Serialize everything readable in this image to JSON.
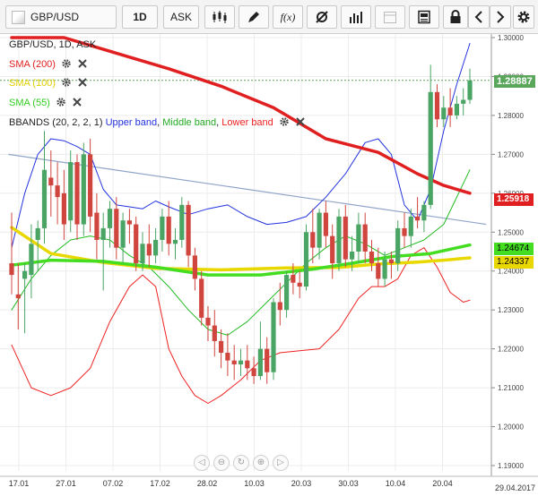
{
  "toolbar": {
    "symbol": "GBP/USD",
    "timeframe": "1D",
    "side": "ASK",
    "icons": [
      "symbol-dropdown-icon",
      "candlestick-type-icon",
      "pencil-draw-icon",
      "function-fx-icon",
      "settings-cog-icon",
      "volume-bars-icon",
      "calendar-icon",
      "save-print-icon",
      "lock-icon",
      "chevron-left-icon",
      "chevron-right-icon",
      "gear-icon"
    ]
  },
  "legend": {
    "title": "GBP/USD, 1D, ASK",
    "sma200": "SMA (200)",
    "sma100": "SMA (100)",
    "sma55": "SMA (55)",
    "bbands_prefix": "BBANDS (20, 2, 2, 1)",
    "upper": "Upper band",
    "middle": "Middle band",
    "lower": "Lower band",
    "sep": ", "
  },
  "colors": {
    "sma200": "#e02020",
    "sma100": "#e8d800",
    "sma55": "#44dd22",
    "upper": "#2233dd",
    "middle": "#22bb22",
    "lower": "#ee2222",
    "up_candle": "#4aa564",
    "down_candle": "#d0463f",
    "trendline": "#8fa4c8",
    "price_tag": "#5aa75c"
  },
  "tags": {
    "price": "1.28887",
    "sma200": "1.25918",
    "sma55": "1.24674",
    "sma100": "1.24337"
  },
  "date_corner": "29.04.2017",
  "nav_icons": [
    "scroll-left-icon",
    "zoom-out-icon",
    "reset-zoom-icon",
    "zoom-in-icon",
    "scroll-right-icon"
  ],
  "chart_data": {
    "type": "candlestick",
    "ylim": [
      1.19,
      1.3
    ],
    "ylabels": [
      "1.30000",
      "1.29000",
      "1.28000",
      "1.27000",
      "1.26000",
      "1.25000",
      "1.24000",
      "1.23000",
      "1.22000",
      "1.21000",
      "1.20000",
      "1.19000"
    ],
    "xlabels": [
      "17.01",
      "27.01",
      "07.02",
      "17.02",
      "28.02",
      "10.03",
      "20.03",
      "30.03",
      "10.04",
      "20.04"
    ],
    "candles": [
      [
        1.242,
        1.255,
        1.239,
        1.234
      ],
      [
        1.234,
        1.242,
        1.233,
        1.225
      ],
      [
        1.238,
        1.242,
        1.24,
        1.224
      ],
      [
        1.239,
        1.252,
        1.247,
        1.233
      ],
      [
        1.248,
        1.253,
        1.251,
        1.24
      ],
      [
        1.251,
        1.276,
        1.266,
        1.247
      ],
      [
        1.264,
        1.271,
        1.262,
        1.254
      ],
      [
        1.262,
        1.268,
        1.259,
        1.252
      ],
      [
        1.26,
        1.266,
        1.252,
        1.248
      ],
      [
        1.253,
        1.271,
        1.268,
        1.25
      ],
      [
        1.268,
        1.27,
        1.252,
        1.248
      ],
      [
        1.252,
        1.273,
        1.27,
        1.249
      ],
      [
        1.27,
        1.274,
        1.254,
        1.25
      ],
      [
        1.255,
        1.26,
        1.248,
        1.243
      ],
      [
        1.248,
        1.255,
        1.251,
        1.235
      ],
      [
        1.251,
        1.258,
        1.256,
        1.246
      ],
      [
        1.256,
        1.259,
        1.246,
        1.243
      ],
      [
        1.246,
        1.255,
        1.253,
        1.242
      ],
      [
        1.253,
        1.256,
        1.252,
        1.247
      ],
      [
        1.252,
        1.254,
        1.242,
        1.24
      ],
      [
        1.242,
        1.25,
        1.247,
        1.24
      ],
      [
        1.247,
        1.252,
        1.244,
        1.241
      ],
      [
        1.244,
        1.251,
        1.248,
        1.242
      ],
      [
        1.248,
        1.256,
        1.254,
        1.245
      ],
      [
        1.254,
        1.258,
        1.247,
        1.244
      ],
      [
        1.247,
        1.251,
        1.248,
        1.243
      ],
      [
        1.248,
        1.259,
        1.257,
        1.246
      ],
      [
        1.257,
        1.258,
        1.244,
        1.241
      ],
      [
        1.244,
        1.246,
        1.238,
        1.235
      ],
      [
        1.238,
        1.24,
        1.228,
        1.226
      ],
      [
        1.228,
        1.231,
        1.226,
        1.222
      ],
      [
        1.226,
        1.23,
        1.222,
        1.218
      ],
      [
        1.222,
        1.225,
        1.219,
        1.215
      ],
      [
        1.219,
        1.224,
        1.217,
        1.213
      ],
      [
        1.217,
        1.221,
        1.216,
        1.212
      ],
      [
        1.216,
        1.22,
        1.217,
        1.213
      ],
      [
        1.217,
        1.221,
        1.215,
        1.212
      ],
      [
        1.215,
        1.218,
        1.213,
        1.211
      ],
      [
        1.213,
        1.227,
        1.22,
        1.212
      ],
      [
        1.22,
        1.223,
        1.214,
        1.211
      ],
      [
        1.214,
        1.233,
        1.232,
        1.212
      ],
      [
        1.232,
        1.237,
        1.23,
        1.226
      ],
      [
        1.23,
        1.24,
        1.239,
        1.228
      ],
      [
        1.239,
        1.242,
        1.237,
        1.234
      ],
      [
        1.237,
        1.24,
        1.236,
        1.233
      ],
      [
        1.236,
        1.252,
        1.25,
        1.235
      ],
      [
        1.25,
        1.256,
        1.246,
        1.242
      ],
      [
        1.246,
        1.256,
        1.255,
        1.243
      ],
      [
        1.255,
        1.258,
        1.249,
        1.246
      ],
      [
        1.249,
        1.252,
        1.242,
        1.238
      ],
      [
        1.242,
        1.256,
        1.254,
        1.24
      ],
      [
        1.254,
        1.257,
        1.243,
        1.241
      ],
      [
        1.243,
        1.249,
        1.245,
        1.24
      ],
      [
        1.245,
        1.255,
        1.252,
        1.242
      ],
      [
        1.252,
        1.255,
        1.245,
        1.242
      ],
      [
        1.245,
        1.248,
        1.242,
        1.24
      ],
      [
        1.242,
        1.246,
        1.238,
        1.236
      ],
      [
        1.238,
        1.245,
        1.243,
        1.236
      ],
      [
        1.243,
        1.245,
        1.242,
        1.238
      ],
      [
        1.242,
        1.253,
        1.251,
        1.24
      ],
      [
        1.251,
        1.255,
        1.249,
        1.246
      ],
      [
        1.249,
        1.256,
        1.254,
        1.246
      ],
      [
        1.254,
        1.259,
        1.253,
        1.251
      ],
      [
        1.253,
        1.258,
        1.257,
        1.25
      ],
      [
        1.257,
        1.293,
        1.286,
        1.256
      ],
      [
        1.286,
        1.288,
        1.279,
        1.277
      ],
      [
        1.279,
        1.285,
        1.282,
        1.277
      ],
      [
        1.282,
        1.287,
        1.28,
        1.277
      ],
      [
        1.28,
        1.285,
        1.283,
        1.279
      ],
      [
        1.283,
        1.287,
        1.284,
        1.28
      ],
      [
        1.284,
        1.292,
        1.289,
        1.283
      ]
    ],
    "sma200": [
      [
        0,
        1.3
      ],
      [
        8,
        1.3
      ],
      [
        16,
        1.296
      ],
      [
        24,
        1.292
      ],
      [
        32,
        1.2875
      ],
      [
        40,
        1.282
      ],
      [
        48,
        1.274
      ],
      [
        56,
        1.2705
      ],
      [
        62,
        1.265
      ],
      [
        66,
        1.262
      ],
      [
        70,
        1.26
      ]
    ],
    "sma100": [
      [
        0,
        1.2512
      ],
      [
        6,
        1.2445
      ],
      [
        14,
        1.2422
      ],
      [
        22,
        1.2407
      ],
      [
        32,
        1.2403
      ],
      [
        42,
        1.2408
      ],
      [
        50,
        1.2409
      ],
      [
        56,
        1.2418
      ],
      [
        62,
        1.2423
      ],
      [
        66,
        1.2428
      ],
      [
        70,
        1.2434
      ]
    ],
    "sma55": [
      [
        0,
        1.2415
      ],
      [
        6,
        1.2428
      ],
      [
        14,
        1.2425
      ],
      [
        22,
        1.241
      ],
      [
        30,
        1.239
      ],
      [
        38,
        1.239
      ],
      [
        46,
        1.2405
      ],
      [
        52,
        1.242
      ],
      [
        58,
        1.2437
      ],
      [
        64,
        1.2445
      ],
      [
        70,
        1.2467
      ]
    ],
    "bb_upper": [
      [
        0,
        1.246
      ],
      [
        2,
        1.26
      ],
      [
        4,
        1.27
      ],
      [
        6,
        1.274
      ],
      [
        8,
        1.2735
      ],
      [
        10,
        1.272
      ],
      [
        12,
        1.27
      ],
      [
        14,
        1.261
      ],
      [
        16,
        1.257
      ],
      [
        18,
        1.2565
      ],
      [
        20,
        1.256
      ],
      [
        22,
        1.258
      ],
      [
        24,
        1.2565
      ],
      [
        27,
        1.2545
      ],
      [
        30,
        1.256
      ],
      [
        33,
        1.257
      ],
      [
        36,
        1.254
      ],
      [
        39,
        1.252
      ],
      [
        42,
        1.2525
      ],
      [
        45,
        1.254
      ],
      [
        48,
        1.259
      ],
      [
        51,
        1.265
      ],
      [
        54,
        1.273
      ],
      [
        56,
        1.274
      ],
      [
        58,
        1.27
      ],
      [
        60,
        1.257
      ],
      [
        62,
        1.253
      ],
      [
        64,
        1.261
      ],
      [
        66,
        1.276
      ],
      [
        68,
        1.288
      ],
      [
        70,
        1.2985
      ]
    ],
    "bb_middle": [
      [
        0,
        1.23
      ],
      [
        3,
        1.238
      ],
      [
        6,
        1.244
      ],
      [
        9,
        1.248
      ],
      [
        12,
        1.249
      ],
      [
        15,
        1.248
      ],
      [
        18,
        1.244
      ],
      [
        21,
        1.241
      ],
      [
        24,
        1.236
      ],
      [
        27,
        1.23
      ],
      [
        30,
        1.225
      ],
      [
        33,
        1.2235
      ],
      [
        36,
        1.227
      ],
      [
        39,
        1.232
      ],
      [
        42,
        1.237
      ],
      [
        45,
        1.242
      ],
      [
        48,
        1.246
      ],
      [
        51,
        1.249
      ],
      [
        54,
        1.247
      ],
      [
        57,
        1.244
      ],
      [
        60,
        1.246
      ],
      [
        63,
        1.248
      ],
      [
        66,
        1.252
      ],
      [
        68,
        1.259
      ],
      [
        70,
        1.266
      ]
    ],
    "bb_lower": [
      [
        0,
        1.221
      ],
      [
        3,
        1.21
      ],
      [
        6,
        1.208
      ],
      [
        9,
        1.21
      ],
      [
        12,
        1.215
      ],
      [
        15,
        1.227
      ],
      [
        18,
        1.236
      ],
      [
        20,
        1.239
      ],
      [
        22,
        1.236
      ],
      [
        24,
        1.22
      ],
      [
        26,
        1.213
      ],
      [
        28,
        1.208
      ],
      [
        30,
        1.206
      ],
      [
        32,
        1.208
      ],
      [
        35,
        1.212
      ],
      [
        38,
        1.217
      ],
      [
        41,
        1.219
      ],
      [
        44,
        1.2195
      ],
      [
        47,
        1.22
      ],
      [
        50,
        1.225
      ],
      [
        53,
        1.233
      ],
      [
        55,
        1.236
      ],
      [
        57,
        1.236
      ],
      [
        59,
        1.238
      ],
      [
        61,
        1.244
      ],
      [
        63,
        1.246
      ],
      [
        65,
        1.241
      ],
      [
        67,
        1.2345
      ],
      [
        69,
        1.232
      ],
      [
        70,
        1.2325
      ]
    ],
    "trendline": [
      [
        -0.5,
        1.27
      ],
      [
        72.5,
        1.252
      ]
    ]
  }
}
